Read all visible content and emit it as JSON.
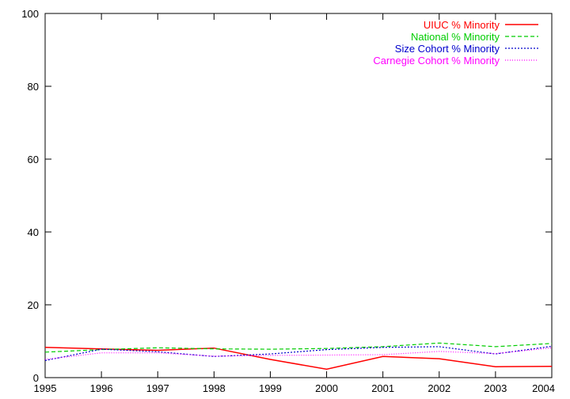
{
  "chart_data": {
    "type": "line",
    "x": [
      1995,
      1996,
      1997,
      1998,
      1999,
      2000,
      2001,
      2002,
      2003,
      2004
    ],
    "xlim": [
      1995,
      2004
    ],
    "ylim": [
      0,
      100
    ],
    "x_ticks": [
      "1995",
      "1996",
      "1997",
      "1998",
      "1999",
      "2000",
      "2001",
      "2002",
      "2003",
      "2004"
    ],
    "y_ticks": [
      "0",
      "20",
      "40",
      "60",
      "80",
      "100"
    ],
    "grid": false,
    "legend_position": "top-right",
    "series": [
      {
        "name": "UIUC % Minority",
        "color": "#ff0000",
        "dash": "solid",
        "values": [
          8.3,
          7.9,
          7.5,
          8.1,
          5.0,
          2.3,
          5.8,
          5.2,
          3.0,
          3.1
        ]
      },
      {
        "name": "National % Minority",
        "color": "#00cc00",
        "dash": "dashed",
        "values": [
          7.0,
          7.7,
          8.2,
          7.9,
          7.8,
          8.0,
          8.5,
          9.5,
          8.5,
          9.4
        ]
      },
      {
        "name": "Size Cohort % Minority",
        "color": "#0000cc",
        "dash": "dotted",
        "values": [
          4.7,
          7.8,
          7.1,
          5.8,
          6.5,
          7.7,
          8.3,
          8.5,
          6.5,
          8.6
        ]
      },
      {
        "name": "Carnegie Cohort % Minority",
        "color": "#ff00ff",
        "dash": "fine-dotted",
        "values": [
          5.0,
          6.8,
          6.8,
          5.9,
          6.1,
          6.2,
          6.3,
          7.2,
          6.6,
          8.2
        ]
      }
    ]
  }
}
